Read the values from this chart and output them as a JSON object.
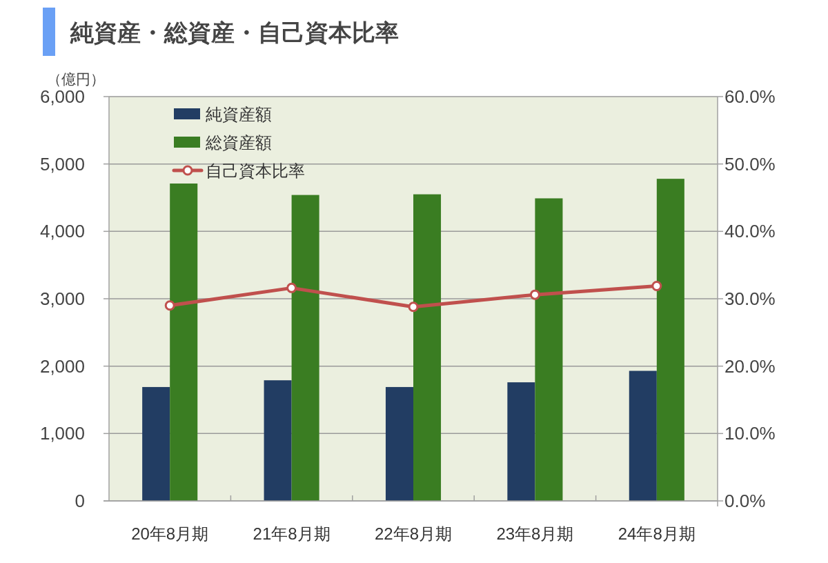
{
  "chart_data": {
    "type": "bar",
    "title": "純資産・総資産・自己資本比率",
    "ylabel": "（億円）",
    "categories": [
      "20年8月期",
      "21年8月期",
      "22年8月期",
      "23年8月期",
      "24年8月期"
    ],
    "series": [
      {
        "name": "純資産額",
        "color": "#223d63",
        "values": [
          1690,
          1790,
          1690,
          1760,
          1930
        ]
      },
      {
        "name": "総資産額",
        "color": "#3a7d22",
        "values": [
          4710,
          4540,
          4550,
          4490,
          4780
        ]
      },
      {
        "name": "自己資本比率",
        "type": "line",
        "axis": "y2",
        "color": "#c0504d",
        "marker": "circle",
        "values": [
          29.0,
          31.6,
          28.8,
          30.6,
          31.9
        ]
      }
    ],
    "ylim": [
      0,
      6000
    ],
    "yticks": [
      0,
      {
        "value": 1000,
        "label": "1,000"
      },
      {
        "value": 2000,
        "label": "2,000"
      },
      {
        "value": 3000,
        "label": "3,000"
      },
      {
        "value": 4000,
        "label": "4,000"
      },
      {
        "value": 5000,
        "label": "5,000"
      },
      {
        "value": 6000,
        "label": "6,000"
      }
    ],
    "y2lim": [
      0,
      60
    ],
    "y2ticks": [
      {
        "value": 0,
        "label": "0.0%"
      },
      {
        "value": 10,
        "label": "10.0%"
      },
      {
        "value": 20,
        "label": "20.0%"
      },
      {
        "value": 30,
        "label": "30.0%"
      },
      {
        "value": 40,
        "label": "40.0%"
      },
      {
        "value": 50,
        "label": "50.0%"
      },
      {
        "value": 60,
        "label": "60.0%"
      }
    ],
    "grid": "y",
    "legend": "top left"
  }
}
